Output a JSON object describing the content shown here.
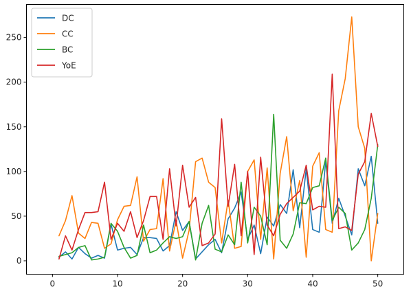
{
  "chart_data": {
    "type": "line",
    "title": "",
    "xlabel": "",
    "ylabel": "",
    "xlim": [
      -4,
      54
    ],
    "ylim": [
      -15,
      287
    ],
    "x_ticks": [
      0,
      10,
      20,
      30,
      40,
      50
    ],
    "y_ticks": [
      0,
      50,
      100,
      150,
      200,
      250
    ],
    "x_tick_labels": [
      "0",
      "10",
      "20",
      "30",
      "40",
      "50"
    ],
    "y_tick_labels": [
      "0",
      "50",
      "100",
      "150",
      "200",
      "250"
    ],
    "grid": false,
    "legend": "upper left",
    "x": [
      1,
      2,
      3,
      4,
      5,
      6,
      7,
      8,
      9,
      10,
      11,
      12,
      13,
      14,
      15,
      16,
      17,
      18,
      19,
      20,
      21,
      22,
      23,
      24,
      25,
      26,
      27,
      28,
      29,
      30,
      31,
      32,
      33,
      34,
      35,
      36,
      37,
      38,
      39,
      40,
      41,
      42,
      43,
      44,
      45,
      46,
      47,
      48,
      49,
      50
    ],
    "series": [
      {
        "name": "DC",
        "color": "#1f77b4",
        "values": [
          4,
          10,
          2,
          15,
          8,
          3,
          6,
          3,
          41,
          12,
          14,
          15,
          7,
          26,
          26,
          25,
          11,
          17,
          55,
          34,
          44,
          2,
          10,
          18,
          24,
          9,
          47,
          59,
          77,
          24,
          40,
          8,
          49,
          39,
          63,
          53,
          102,
          37,
          103,
          35,
          32,
          112,
          42,
          70,
          50,
          29,
          103,
          84,
          117,
          42
        ]
      },
      {
        "name": "CC",
        "color": "#ff7f0e",
        "values": [
          28,
          45,
          73,
          31,
          25,
          43,
          42,
          14,
          19,
          46,
          61,
          62,
          94,
          22,
          35,
          36,
          92,
          11,
          45,
          3,
          34,
          111,
          115,
          88,
          82,
          20,
          68,
          14,
          16,
          100,
          113,
          24,
          104,
          2,
          98,
          139,
          56,
          90,
          4,
          106,
          121,
          35,
          32,
          168,
          204,
          273,
          150,
          126,
          0,
          53
        ]
      },
      {
        "name": "BC",
        "color": "#2ca02c",
        "values": [
          5,
          7,
          9,
          15,
          17,
          1,
          2,
          4,
          42,
          33,
          15,
          3,
          6,
          40,
          9,
          12,
          20,
          27,
          25,
          27,
          44,
          1,
          42,
          62,
          13,
          10,
          29,
          18,
          88,
          20,
          60,
          50,
          18,
          164,
          23,
          14,
          30,
          65,
          64,
          82,
          84,
          115,
          45,
          60,
          53,
          12,
          20,
          35,
          70,
          130
        ]
      },
      {
        "name": "YoE",
        "color": "#d62728",
        "values": [
          2,
          28,
          12,
          35,
          54,
          54,
          55,
          88,
          24,
          42,
          33,
          55,
          26,
          45,
          72,
          72,
          24,
          103,
          39,
          107,
          60,
          71,
          17,
          20,
          30,
          159,
          61,
          108,
          28,
          100,
          7,
          116,
          40,
          28,
          52,
          64,
          71,
          78,
          107,
          57,
          61,
          60,
          209,
          36,
          38,
          34,
          97,
          111,
          165,
          128
        ]
      }
    ]
  }
}
